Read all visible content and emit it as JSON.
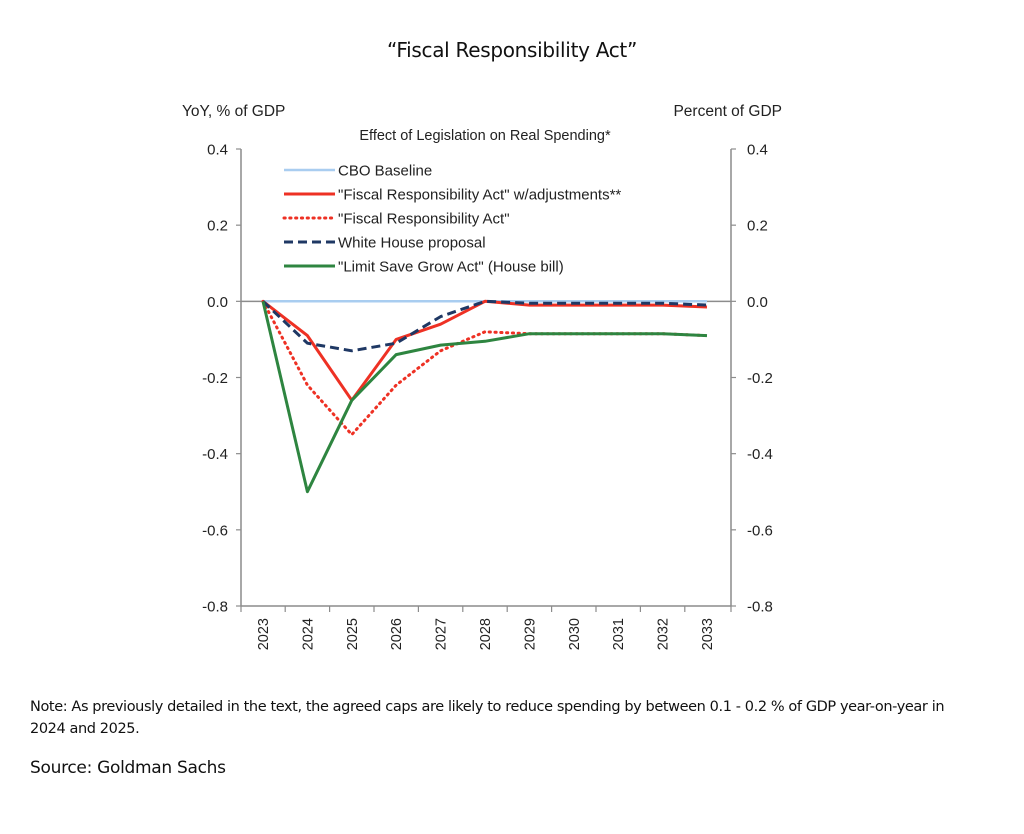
{
  "page": {
    "title": "“Fiscal Responsibility Act”",
    "note_label": "Note:",
    "note_text": " As previously detailed in the text, the agreed caps are likely to reduce spending by between 0.1 - 0.2 % of GDP year-on-year in 2024 and 2025.",
    "source": "Source:  Goldman Sachs"
  },
  "chart_data": {
    "type": "line",
    "title": "Effect of Legislation on Real Spending*",
    "ylabel_left": "YoY, % of GDP",
    "ylabel_right": "Percent of GDP",
    "xlabel": "",
    "ylim": [
      -0.8,
      0.4
    ],
    "yticks": [
      "0.4",
      "0.2",
      "0.0",
      "-0.2",
      "-0.4",
      "-0.6",
      "-0.8"
    ],
    "ytick_values": [
      0.4,
      0.2,
      0.0,
      -0.2,
      -0.4,
      -0.6,
      -0.8
    ],
    "x": [
      "2023",
      "2024",
      "2025",
      "2026",
      "2027",
      "2028",
      "2029",
      "2030",
      "2031",
      "2032",
      "2033"
    ],
    "grid": false,
    "legend_position": "top-inside",
    "series": [
      {
        "name": "CBO Baseline",
        "color": "#a9cdf0",
        "style": "solid",
        "values": [
          0,
          0,
          0,
          0,
          0,
          0,
          0,
          0,
          0,
          0,
          0
        ]
      },
      {
        "name": "\"Fiscal Responsibility Act\" w/adjustments**",
        "color": "#ee3124",
        "style": "solid",
        "values": [
          0,
          -0.09,
          -0.26,
          -0.1,
          -0.06,
          0.0,
          -0.01,
          -0.01,
          -0.01,
          -0.01,
          -0.015
        ]
      },
      {
        "name": "\"Fiscal Responsibility Act\"",
        "color": "#ee3124",
        "style": "dotted",
        "values": [
          0,
          -0.22,
          -0.35,
          -0.22,
          -0.13,
          -0.08,
          -0.085,
          -0.085,
          -0.085,
          -0.085,
          -0.09
        ]
      },
      {
        "name": "White House proposal",
        "color": "#1f3864",
        "style": "dashed",
        "values": [
          0,
          -0.11,
          -0.13,
          -0.11,
          -0.04,
          0.0,
          -0.005,
          -0.005,
          -0.005,
          -0.005,
          -0.01
        ]
      },
      {
        "name": "\"Limit Save Grow Act\" (House bill)",
        "color": "#2e8540",
        "style": "solid",
        "values": [
          0,
          -0.5,
          -0.26,
          -0.14,
          -0.115,
          -0.105,
          -0.085,
          -0.085,
          -0.085,
          -0.085,
          -0.09
        ]
      }
    ]
  }
}
